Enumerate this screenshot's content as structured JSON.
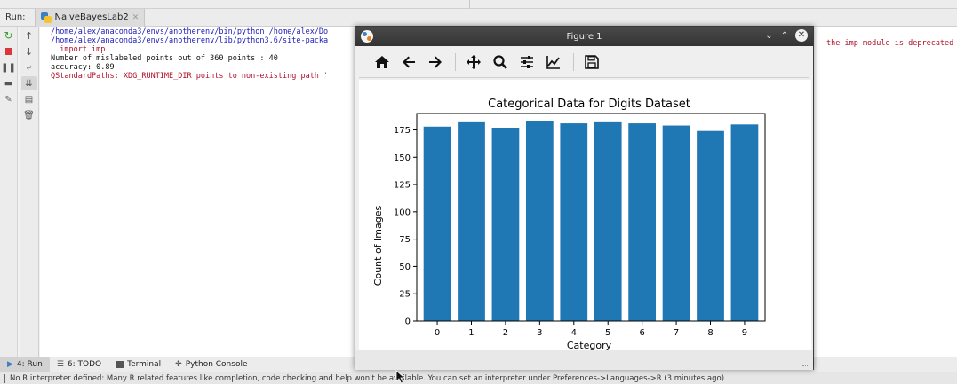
{
  "run_panel": {
    "label": "Run:",
    "tab_title": "NaiveBayesLab2"
  },
  "console": {
    "lines": [
      {
        "text": "/home/alex/anaconda3/envs/anotherenv/bin/python /home/alex/Do",
        "color": "blue"
      },
      {
        "text": "/home/alex/anaconda3/envs/anotherenv/lib/python3.6/site-packa",
        "color": "blue"
      },
      {
        "text": "  import imp",
        "color": "red"
      },
      {
        "text": "Number of mislabeled points out of 360 points : 40",
        "color": "black"
      },
      {
        "text": "accuracy: 0.89",
        "color": "black"
      },
      {
        "text": "QStandardPaths: XDG_RUNTIME_DIR points to non-existing path '",
        "color": "red"
      }
    ],
    "line2_tail": "the imp module is deprecated i"
  },
  "bottom_tabs": {
    "run": "4: Run",
    "todo": "6: TODO",
    "terminal": "Terminal",
    "python_console": "Python Console"
  },
  "status_bar": {
    "text": "No R interpreter defined: Many R related features like completion, code checking and help won't be available. You can set an interpreter under Preferences->Languages->R (3 minutes ago)"
  },
  "figure_window": {
    "title": "Figure 1"
  },
  "chart_data": {
    "type": "bar",
    "title": "Categorical Data for Digits Dataset",
    "xlabel": "Category",
    "ylabel": "Count of Images",
    "categories": [
      "0",
      "1",
      "2",
      "3",
      "4",
      "5",
      "6",
      "7",
      "8",
      "9"
    ],
    "values": [
      178,
      182,
      177,
      183,
      181,
      182,
      181,
      179,
      174,
      180
    ],
    "ylim": [
      0,
      190
    ],
    "yticks": [
      0,
      25,
      50,
      75,
      100,
      125,
      150,
      175
    ],
    "bar_color": "#1f77b4",
    "grid": false
  }
}
